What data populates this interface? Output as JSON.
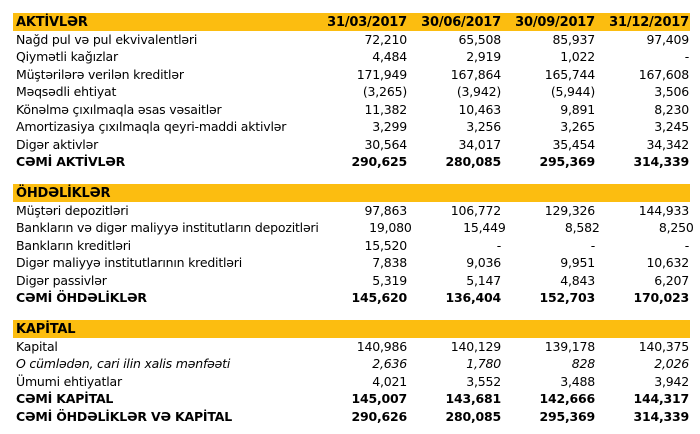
{
  "colors": {
    "band_background": "#FCBD10",
    "text": "#000000",
    "page_background": "#FFFFFF"
  },
  "table": {
    "columns": [
      "31/03/2017",
      "30/06/2017",
      "30/09/2017",
      "31/12/2017"
    ],
    "sections": [
      {
        "header": "AKTİVLƏR",
        "rows": [
          {
            "label": "Nağd pul və pul ekvivalentləri",
            "values": [
              "72,210",
              "65,508",
              "85,937",
              "97,409"
            ]
          },
          {
            "label": "Qiymətli kağızlar",
            "values": [
              "4,484",
              "2,919",
              "1,022",
              "-"
            ]
          },
          {
            "label": "Müştərilərə verilən kreditlər",
            "values": [
              "171,949",
              "167,864",
              "165,744",
              "167,608"
            ]
          },
          {
            "label": "Məqsədli ehtiyat",
            "values": [
              "(3,265)",
              "(3,942)",
              "(5,944)",
              "3,506"
            ]
          },
          {
            "label": "Könəlmə çıxılmaqla əsas vəsaitlər",
            "values": [
              "11,382",
              "10,463",
              "9,891",
              "8,230"
            ]
          },
          {
            "label": "Amortizasiya çıxılmaqla qeyri-maddi aktivlər",
            "values": [
              "3,299",
              "3,256",
              "3,265",
              "3,245"
            ]
          },
          {
            "label": "Digər aktivlər",
            "values": [
              "30,564",
              "34,017",
              "35,454",
              "34,342"
            ]
          },
          {
            "label": "CƏMİ AKTİVLƏR",
            "values": [
              "290,625",
              "280,085",
              "295,369",
              "314,339"
            ]
          }
        ]
      },
      {
        "header": "ÖHDƏLİKLƏR",
        "rows": [
          {
            "label": "Müştəri depozitləri",
            "values": [
              "97,863",
              "106,772",
              "129,326",
              "144,933"
            ]
          },
          {
            "label": "Bankların və digər maliyyə institutların depozitləri",
            "values": [
              "19,080",
              "15,449",
              "8,582",
              "8,250"
            ]
          },
          {
            "label": "Bankların kreditləri",
            "values": [
              "15,520",
              "-",
              "-",
              "-"
            ]
          },
          {
            "label": "Digər maliyyə institutlarının kreditləri",
            "values": [
              "7,838",
              "9,036",
              "9,951",
              "10,632"
            ]
          },
          {
            "label": "Digər passivlər",
            "values": [
              "5,319",
              "5,147",
              "4,843",
              "6,207"
            ]
          },
          {
            "label": "CƏMİ ÖHDƏLİKLƏR",
            "values": [
              "145,620",
              "136,404",
              "152,703",
              "170,023"
            ]
          }
        ]
      },
      {
        "header": "KAPİTAL",
        "rows": [
          {
            "label": "Kapital",
            "values": [
              "140,986",
              "140,129",
              "139,178",
              "140,375"
            ]
          },
          {
            "label": "O cümlədən, cari ilin xalis mənfəəti",
            "values": [
              "2,636",
              "1,780",
              "828",
              "2,026"
            ]
          },
          {
            "label": "Ümumi ehtiyatlar",
            "values": [
              "4,021",
              "3,552",
              "3,488",
              "3,942"
            ]
          },
          {
            "label": "CƏMİ KAPİTAL",
            "values": [
              "145,007",
              "143,681",
              "142,666",
              "144,317"
            ]
          },
          {
            "label": "CƏMİ ÖHDƏLİKLƏR VƏ KAPİTAL",
            "values": [
              "290,626",
              "280,085",
              "295,369",
              "314,339"
            ]
          }
        ]
      }
    ]
  }
}
